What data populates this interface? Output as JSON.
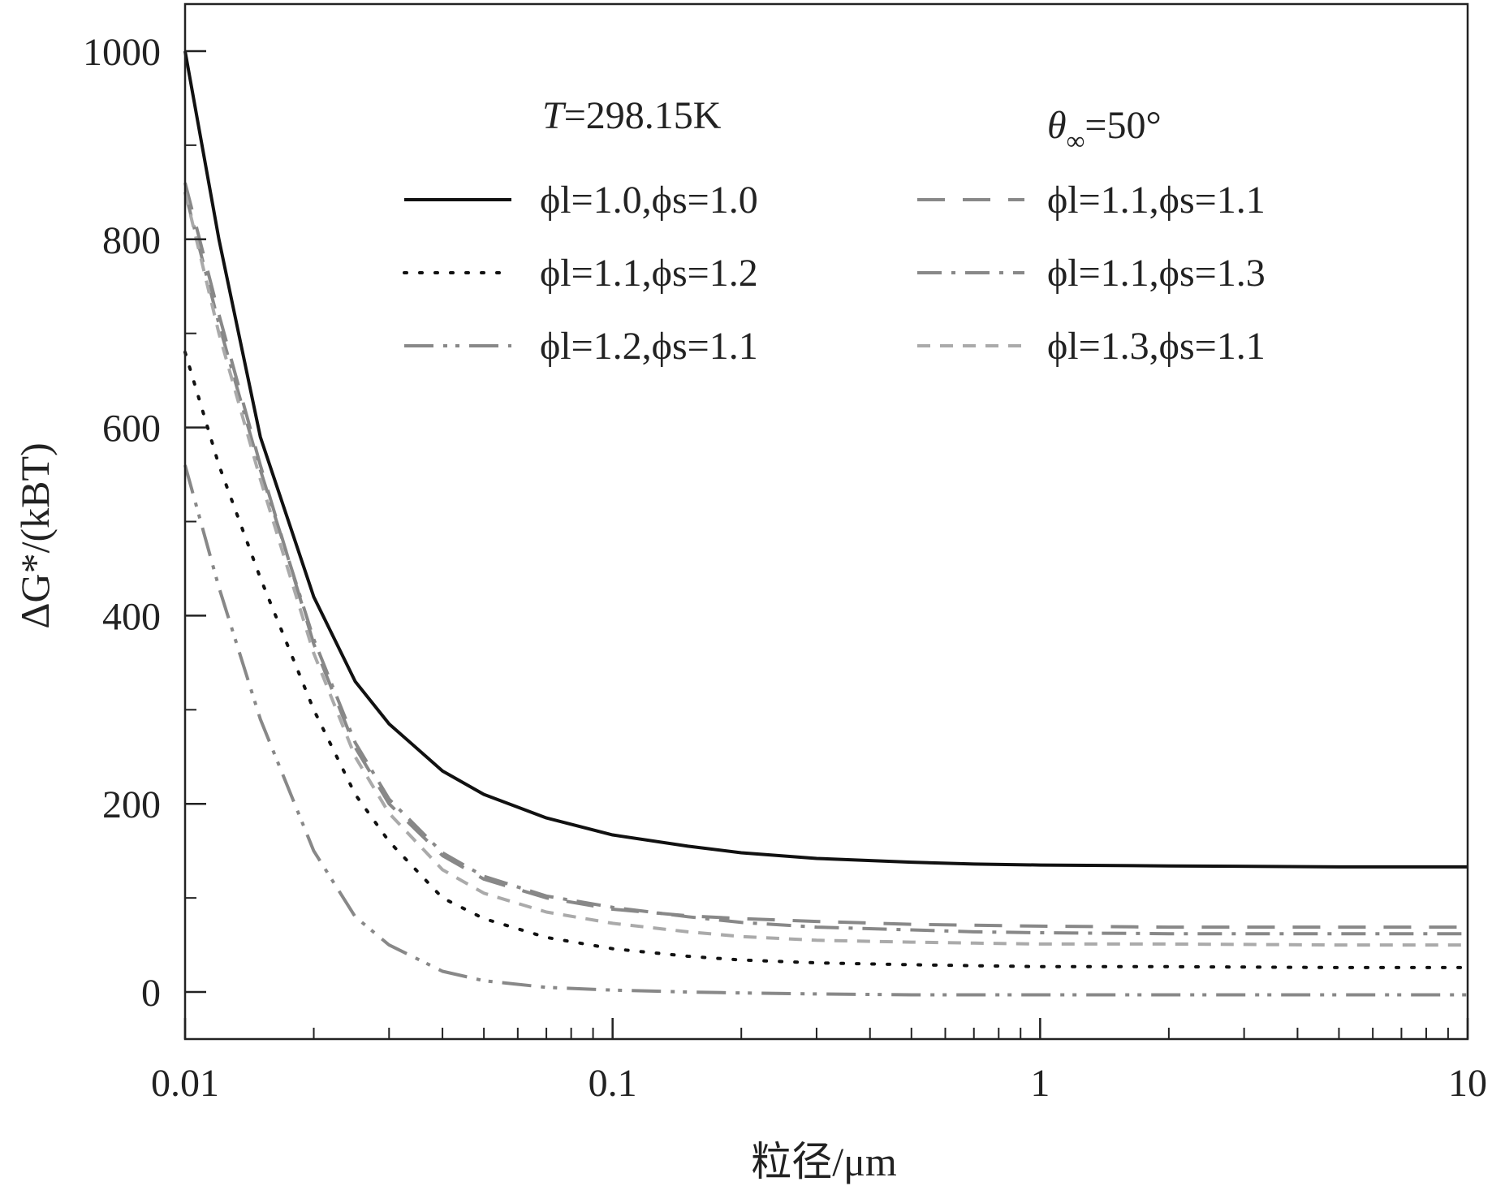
{
  "chart_data": {
    "type": "line",
    "xlabel": "粒径/μm",
    "ylabel": "ΔG*/(kBT)",
    "xscale": "log",
    "xlim": [
      0.01,
      10
    ],
    "ylim": [
      -50,
      1050
    ],
    "xticks": [
      0.01,
      0.1,
      1,
      10
    ],
    "xtick_labels": [
      "0.01",
      "0.1",
      "1",
      "10"
    ],
    "yticks": [
      0,
      200,
      400,
      600,
      800,
      1000
    ],
    "ytick_labels": [
      "0",
      "200",
      "400",
      "600",
      "800",
      "1000"
    ],
    "grid": false,
    "legend_position": "top",
    "annotations": [
      {
        "text": "T=298.15K"
      },
      {
        "text": "θ∞=50°"
      }
    ],
    "x": [
      0.01,
      0.012,
      0.015,
      0.02,
      0.025,
      0.03,
      0.04,
      0.05,
      0.07,
      0.1,
      0.15,
      0.2,
      0.3,
      0.5,
      0.7,
      1,
      2,
      5,
      10
    ],
    "series": [
      {
        "name": "ϕl=1.0,ϕs=1.0",
        "color": "#111111",
        "dash": "solid",
        "values": [
          1000,
          800,
          590,
          420,
          330,
          285,
          235,
          210,
          185,
          167,
          155,
          148,
          142,
          138,
          136,
          135,
          134,
          133,
          133
        ]
      },
      {
        "name": "ϕl=1.1,ϕs=1.1",
        "color": "#888888",
        "dash": "dashed",
        "values": [
          860,
          720,
          560,
          370,
          260,
          200,
          145,
          120,
          100,
          88,
          81,
          78,
          75,
          72,
          71,
          70,
          69,
          69,
          69
        ]
      },
      {
        "name": "ϕl=1.1,ϕs=1.2",
        "color": "#111111",
        "dash": "dotted",
        "values": [
          680,
          560,
          440,
          300,
          210,
          160,
          100,
          78,
          58,
          46,
          38,
          34,
          31,
          29,
          28,
          27,
          27,
          26,
          26
        ]
      },
      {
        "name": "ϕl=1.1,ϕs=1.3",
        "color": "#888888",
        "dash": "dashdot",
        "values": [
          850,
          710,
          555,
          375,
          265,
          205,
          148,
          123,
          102,
          90,
          80,
          74,
          69,
          66,
          64,
          63,
          62,
          62,
          62
        ]
      },
      {
        "name": "ϕl=1.2,ϕs=1.1",
        "color": "#888888",
        "dash": "dashdotdot",
        "values": [
          560,
          430,
          290,
          150,
          80,
          50,
          22,
          12,
          5,
          2,
          0,
          -1,
          -2,
          -3,
          -3,
          -3,
          -3,
          -3,
          -3
        ]
      },
      {
        "name": "ϕl=1.3,ϕs=1.1",
        "color": "#aaaaaa",
        "dash": "shortdash",
        "values": [
          850,
          700,
          545,
          360,
          250,
          190,
          130,
          105,
          85,
          73,
          64,
          59,
          55,
          53,
          52,
          51,
          51,
          50,
          50
        ]
      }
    ]
  }
}
